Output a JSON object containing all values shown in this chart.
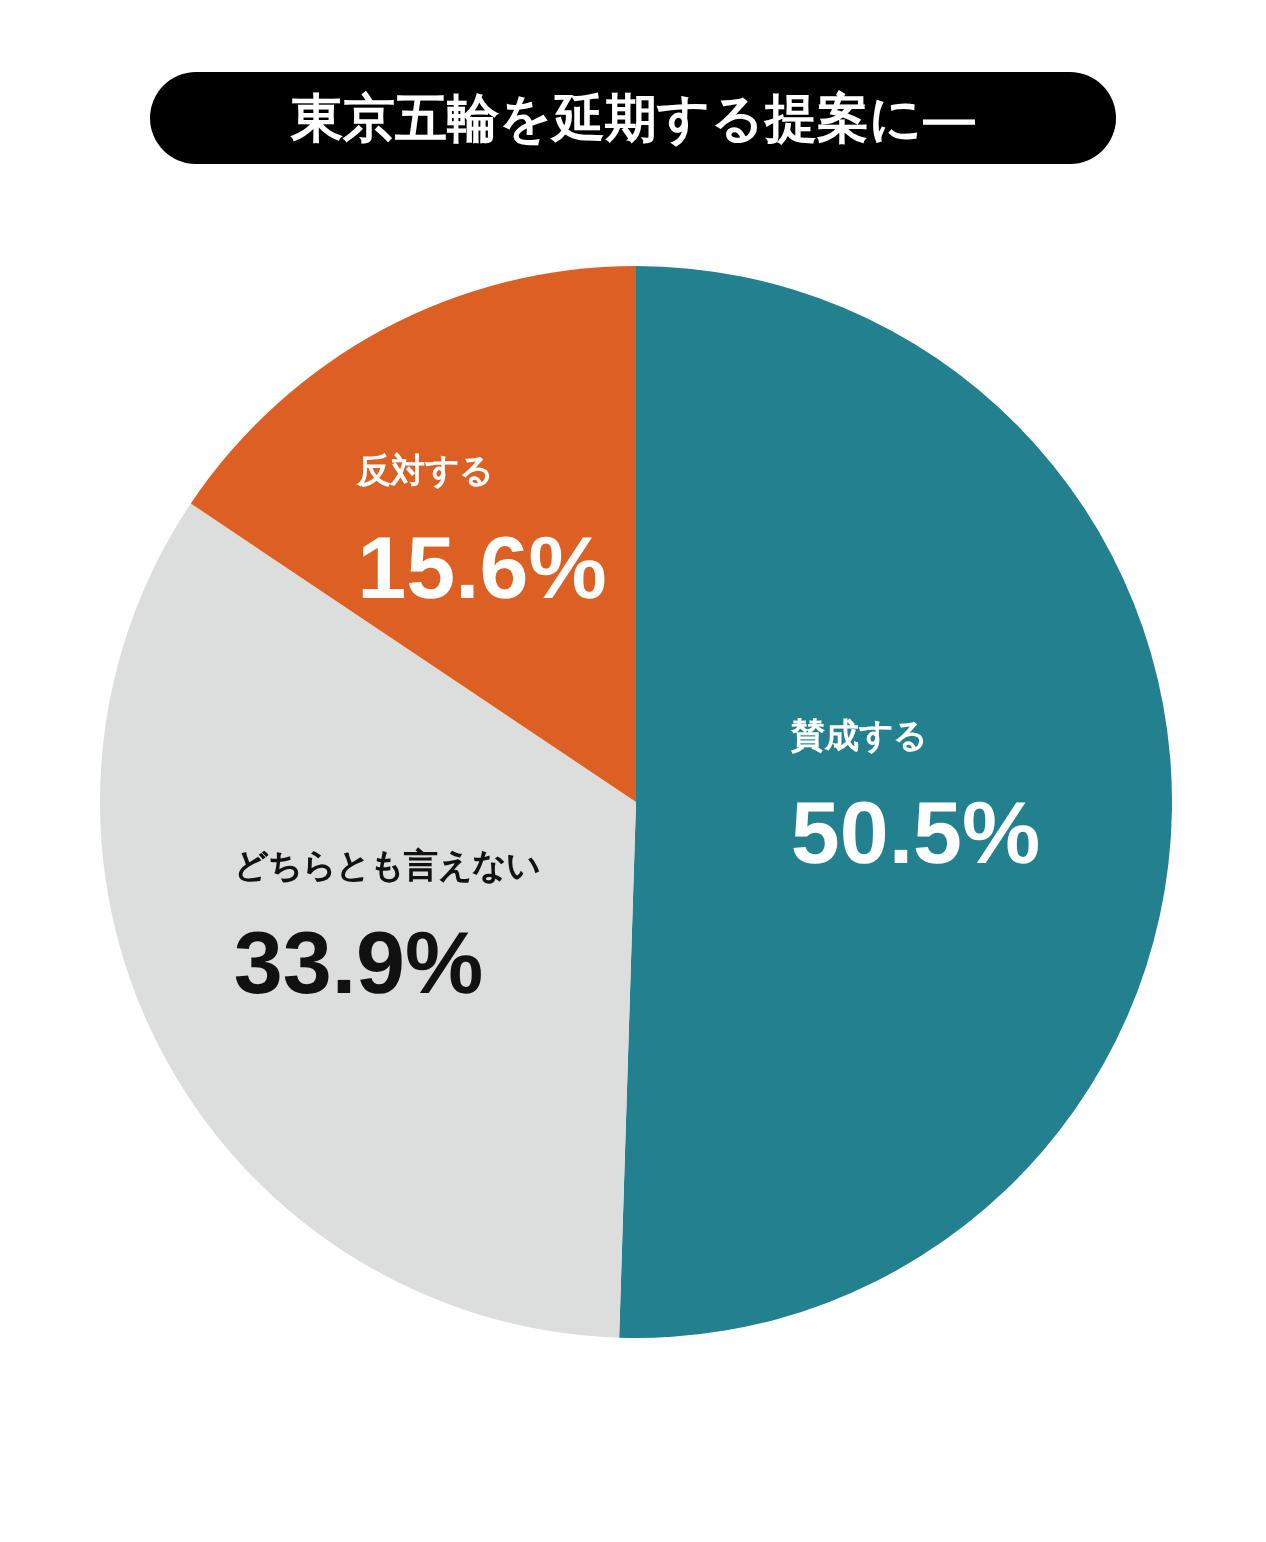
{
  "chart_data": {
    "type": "pie",
    "title": "東京五輪を延期する提案に―",
    "categories": [
      "賛成する",
      "どちらとも言えない",
      "反対する"
    ],
    "values": [
      50.5,
      33.9,
      15.6
    ],
    "colors": [
      "#23818f",
      "#dcdddd",
      "#dc5f24"
    ],
    "value_labels": [
      "50.5%",
      "33.9%",
      "15.6%"
    ]
  }
}
